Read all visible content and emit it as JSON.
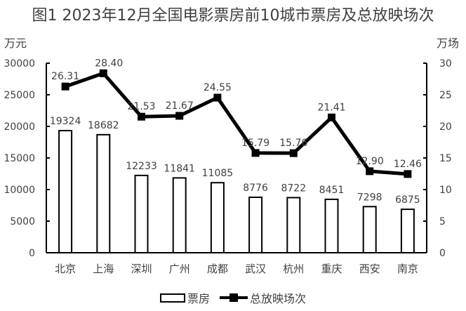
{
  "title": "图1  2023年12月全国电影票房前10城市票房及总放映场次",
  "units": {
    "left": "万元",
    "right": "万场"
  },
  "legend": {
    "bar": "票房",
    "line": "总放映场次"
  },
  "chart_data": {
    "type": "bar+line",
    "title": "图1  2023年12月全国电影票房前10城市票房及总放映场次",
    "categories": [
      "北京",
      "上海",
      "深圳",
      "广州",
      "成都",
      "武汉",
      "杭州",
      "重庆",
      "西安",
      "南京"
    ],
    "series": [
      {
        "name": "票房",
        "type": "bar",
        "axis": "left",
        "unit": "万元",
        "values": [
          19324,
          18682,
          12233,
          11841,
          11085,
          8776,
          8722,
          8451,
          7298,
          6875
        ]
      },
      {
        "name": "总放映场次",
        "type": "line",
        "axis": "right",
        "unit": "万场",
        "values": [
          26.31,
          28.4,
          21.53,
          21.67,
          24.55,
          15.79,
          15.76,
          21.41,
          12.9,
          12.46
        ]
      }
    ],
    "ylabel_left": "万元",
    "ylabel_right": "万场",
    "ylim_left": [
      0,
      30000
    ],
    "ylim_right": [
      0,
      30
    ],
    "yticks_left": [
      0,
      5000,
      10000,
      15000,
      20000,
      25000,
      30000
    ],
    "yticks_right": [
      0,
      5,
      10,
      15,
      20,
      25,
      30
    ],
    "grid": false,
    "legend_position": "bottom"
  }
}
